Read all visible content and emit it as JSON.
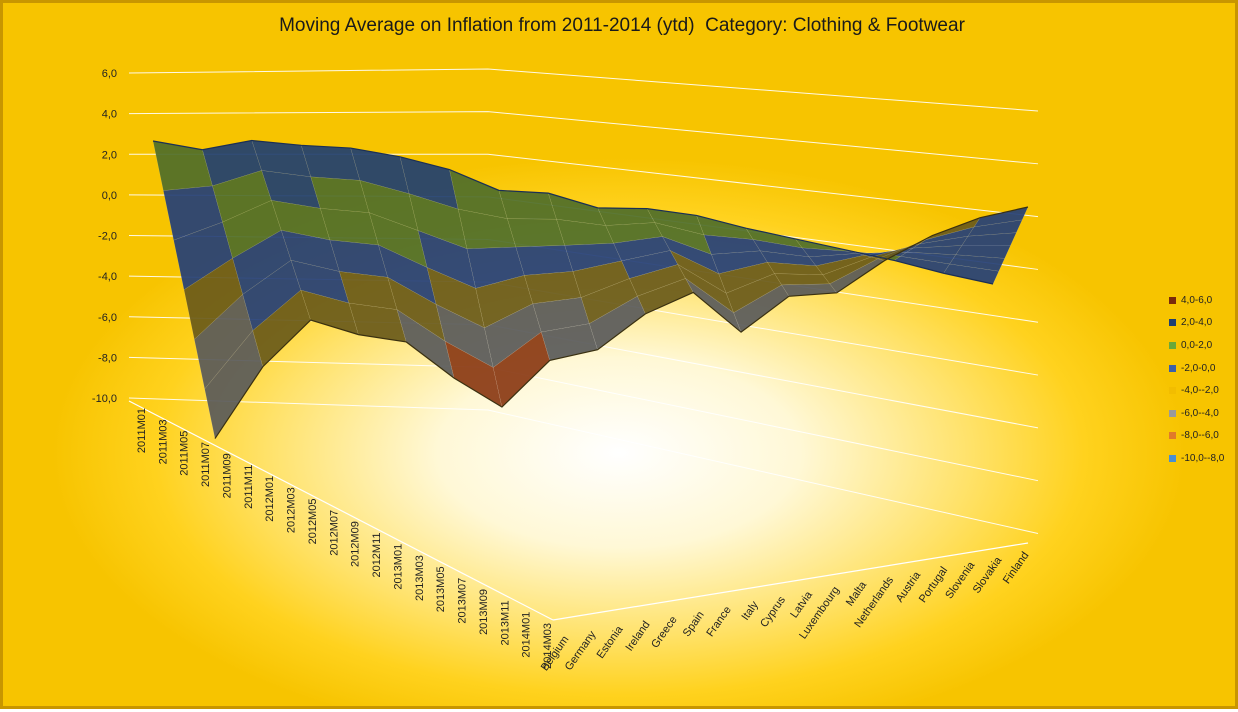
{
  "chart_data": {
    "type": "surface",
    "title": "Moving Average on Inflation from 2011-2014 (ytd)  Category: Clothing & Footwear",
    "y_ticks": [
      "6,0",
      "4,0",
      "2,0",
      "0,0",
      "-2,0",
      "-4,0",
      "-6,0",
      "-8,0",
      "-10,0"
    ],
    "ylim": [
      -10,
      6
    ],
    "time_labels": [
      "2011M01",
      "2011M03",
      "2011M05",
      "2011M07",
      "2011M09",
      "2011M11",
      "2012M01",
      "2012M03",
      "2012M05",
      "2012M07",
      "2012M09",
      "2012M11",
      "2013M01",
      "2013M03",
      "2013M05",
      "2013M07",
      "2013M09",
      "2013M11",
      "2014M01",
      "2014M03"
    ],
    "countries": [
      "Belgium",
      "Germany",
      "Estonia",
      "Ireland",
      "Greece",
      "Spain",
      "France",
      "Italy",
      "Cyprus",
      "Latvia",
      "Luxembourg",
      "Malta",
      "Netherlands",
      "Austria",
      "Portugal",
      "Slovenia",
      "Slovakia",
      "Finland"
    ],
    "legend": [
      {
        "label": "4,0-6,0",
        "color": "#7a2a0c"
      },
      {
        "label": "2,0-4,0",
        "color": "#1f3f72"
      },
      {
        "label": "0,0-2,0",
        "color": "#6aa83a"
      },
      {
        "label": "-2,0-0,0",
        "color": "#3b5fa8"
      },
      {
        "label": "-4,0--2,0",
        "color": "#f2bd00"
      },
      {
        "label": "-6,0--4,0",
        "color": "#9a9a9a"
      },
      {
        "label": "-8,0--6,0",
        "color": "#e07a2a"
      },
      {
        "label": "-10,0--8,0",
        "color": "#4a8fd0"
      }
    ],
    "front_profile": [
      {
        "country": "Belgium",
        "value": -8.2
      },
      {
        "country": "Germany",
        "value": -4.6
      },
      {
        "country": "Estonia",
        "value": -2.4
      },
      {
        "country": "Ireland",
        "value": -3.6
      },
      {
        "country": "Greece",
        "value": -4.4
      },
      {
        "country": "Spain",
        "value": -6.8
      },
      {
        "country": "France",
        "value": -8.8
      },
      {
        "country": "Italy",
        "value": -6.6
      },
      {
        "country": "Cyprus",
        "value": -6.4
      },
      {
        "country": "Latvia",
        "value": -4.8
      },
      {
        "country": "Luxembourg",
        "value": -4.0
      },
      {
        "country": "Malta",
        "value": -6.6
      },
      {
        "country": "Netherlands",
        "value": -5.0
      },
      {
        "country": "Austria",
        "value": -5.2
      },
      {
        "country": "Portugal",
        "value": -3.8
      },
      {
        "country": "Slovenia",
        "value": -2.8
      },
      {
        "country": "Slovakia",
        "value": -2.2
      },
      {
        "country": "Finland",
        "value": -2.0
      }
    ],
    "back_profile": [
      {
        "country": "Belgium",
        "value": 2.2
      },
      {
        "country": "Germany",
        "value": 2.0
      },
      {
        "country": "Estonia",
        "value": 3.6
      },
      {
        "country": "Ireland",
        "value": 3.8
      },
      {
        "country": "Greece",
        "value": 4.2
      },
      {
        "country": "Spain",
        "value": 4.0
      },
      {
        "country": "France",
        "value": 3.4
      },
      {
        "country": "Italy",
        "value": 2.0
      },
      {
        "country": "Cyprus",
        "value": 2.4
      },
      {
        "country": "Latvia",
        "value": 1.6
      },
      {
        "country": "Luxembourg",
        "value": 2.2
      },
      {
        "country": "Malta",
        "value": 2.2
      },
      {
        "country": "Netherlands",
        "value": 1.6
      },
      {
        "country": "Austria",
        "value": 1.2
      },
      {
        "country": "Portugal",
        "value": 0.8
      },
      {
        "country": "Slovenia",
        "value": 0.4
      },
      {
        "country": "Slovakia",
        "value": -0.2
      },
      {
        "country": "Finland",
        "value": -0.6
      }
    ],
    "grid": true,
    "legend_position": "right"
  }
}
